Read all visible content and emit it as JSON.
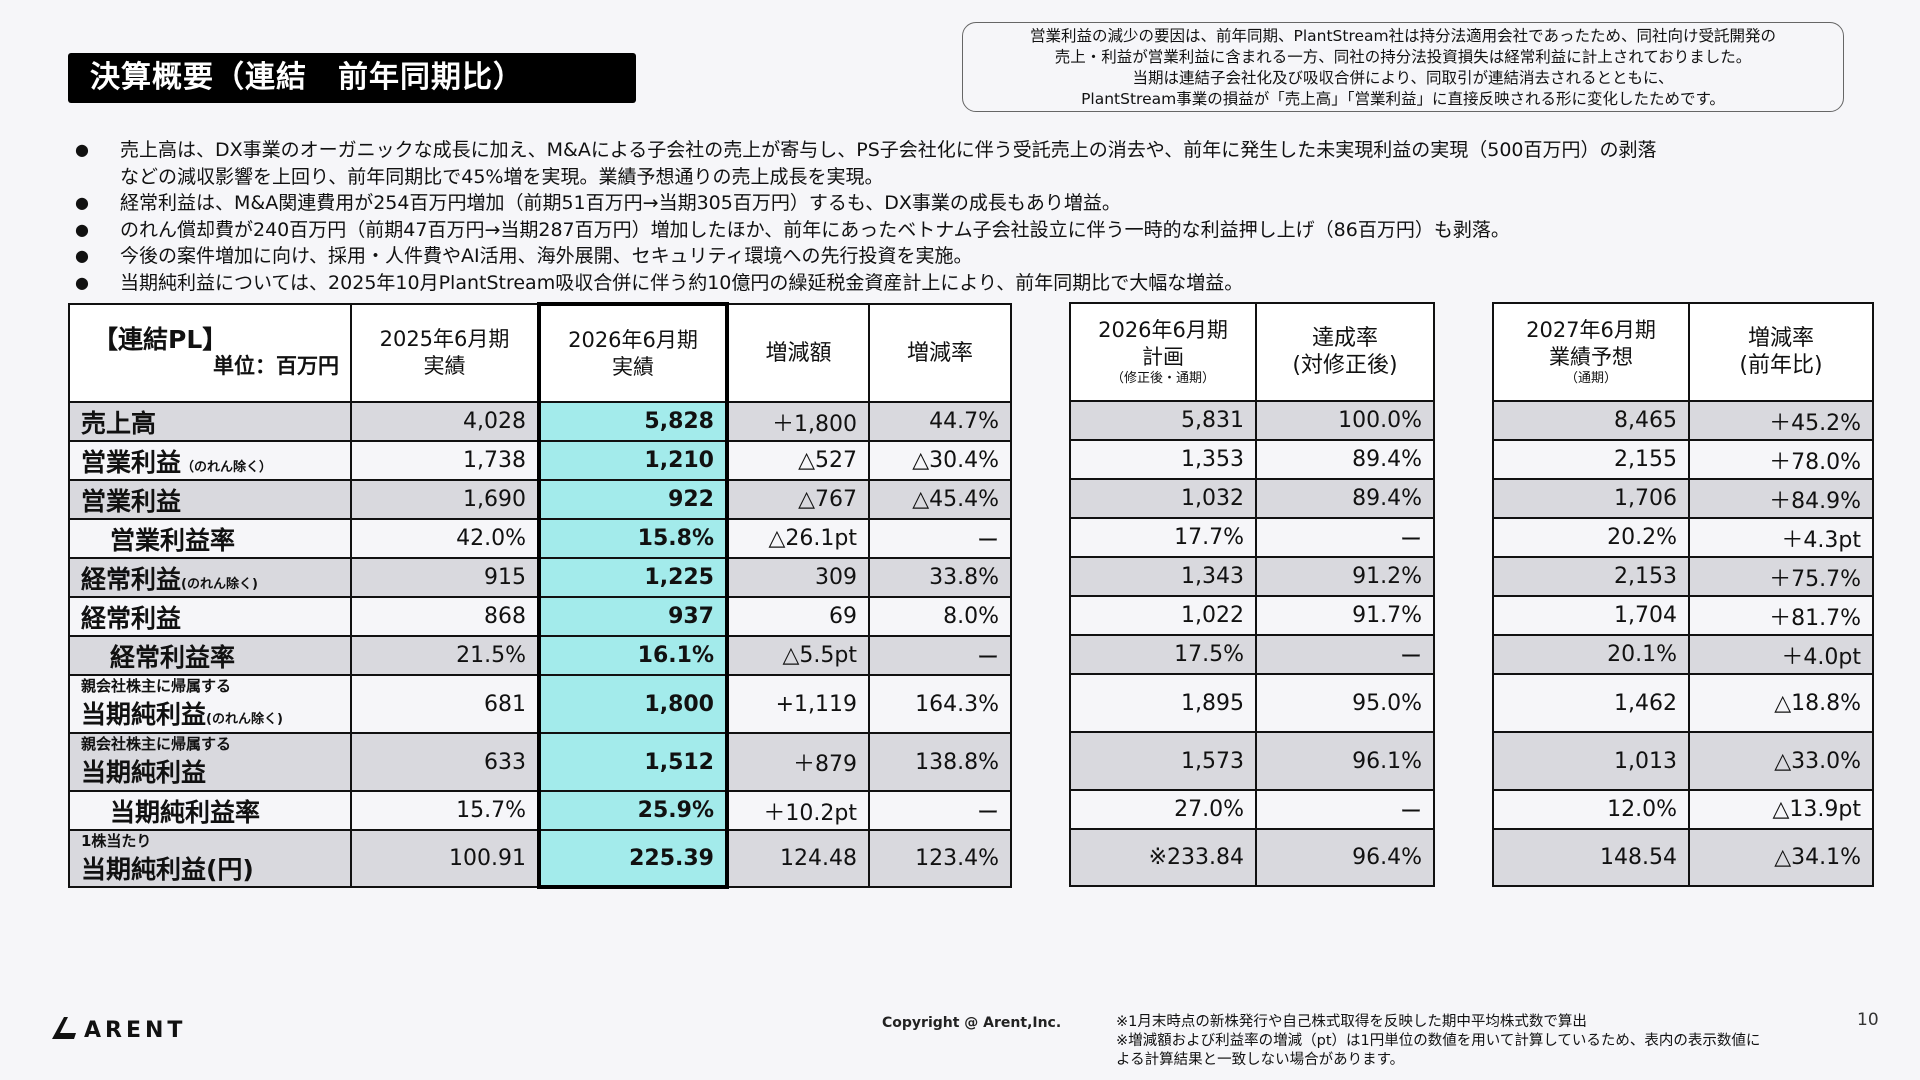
{
  "title": "決算概要（連結　前年同期比）",
  "note_box": [
    "営業利益の減少の要因は、前年同期、PlantStream社は持分法適用会社であったため、同社向け受託開発の",
    "売上・利益が営業利益に含まれる一方、同社の持分法投資損失は経常利益に計上されておりました。",
    "当期は連結子会社化及び吸収合併により、同取引が連結消去されるとともに、",
    "PlantStream事業の損益が「売上高」「営業利益」に直接反映される形に変化したためです。"
  ],
  "bullets": [
    {
      "lines": [
        "売上高は、DX事業のオーガニックな成長に加え、M&Aによる子会社の売上が寄与し、PS子会社化に伴う受託売上の消去や、前年に発生した未実現利益の実現（500百万円）の剥落",
        "などの減収影響を上回り、前年同期比で45%増を実現。業績予想通りの売上成長を実現。"
      ]
    },
    {
      "lines": [
        "経常利益は、M&A関連費用が254百万円増加（前期51百万円→当期305百万円）するも、DX事業の成長もあり増益。"
      ]
    },
    {
      "lines": [
        "のれん償却費が240百万円（前期47百万円→当期287百万円）増加したほか、前年にあったベトナム子会社設立に伴う一時的な利益押し上げ（86百万円）も剥落。"
      ]
    },
    {
      "lines": [
        "今後の案件増加に向け、採用・人件費やAI活用、海外展開、セキュリティ環境への先行投資を実施。"
      ]
    },
    {
      "lines": [
        "当期純利益については、2025年10月PlantStream吸収合併に伴う約10億円の繰延税金資産計上により、前年同期比で大幅な増益。"
      ]
    }
  ],
  "bullet_symbol": "●",
  "table_main": {
    "header_label": "【連結PL】",
    "header_unit": "単位：百万円",
    "columns": [
      {
        "l1": "2025年6月期",
        "l2": "実績"
      },
      {
        "l1": "2026年6月期",
        "l2": "実績"
      },
      {
        "l1": "増減額",
        "l2": ""
      },
      {
        "l1": "増減率",
        "l2": ""
      }
    ]
  },
  "table_plan": {
    "columns": [
      {
        "l1": "2026年6月期",
        "l2": "計画",
        "sub": "（修正後・通期）"
      },
      {
        "l1": "達成率",
        "l2": "(対修正後)",
        "sub": ""
      }
    ]
  },
  "table_fcst": {
    "columns": [
      {
        "l1": "2027年6月期",
        "l2": "業績予想",
        "sub": "（通期）"
      },
      {
        "l1": "増減率",
        "l2": "(前年比)",
        "sub": ""
      }
    ]
  },
  "rows": [
    {
      "pre": "",
      "label": "売上高",
      "suffix": "",
      "indent": false,
      "alt": false,
      "prev": "4,028",
      "curr": "5,828",
      "diff": "＋1,800",
      "rate": "44.7%",
      "plan": "5,831",
      "achv": "100.0%",
      "fcst": "8,465",
      "fchg": "＋45.2%"
    },
    {
      "pre": "",
      "label": "営業利益",
      "suffix": "（のれん除く）",
      "indent": false,
      "alt": true,
      "prev": "1,738",
      "curr": "1,210",
      "diff": "△527",
      "rate": "△30.4%",
      "plan": "1,353",
      "achv": "89.4%",
      "fcst": "2,155",
      "fchg": "＋78.0%"
    },
    {
      "pre": "",
      "label": "営業利益",
      "suffix": "",
      "indent": false,
      "alt": false,
      "prev": "1,690",
      "curr": "922",
      "diff": "△767",
      "rate": "△45.4%",
      "plan": "1,032",
      "achv": "89.4%",
      "fcst": "1,706",
      "fchg": "＋84.9%"
    },
    {
      "pre": "",
      "label": "営業利益率",
      "suffix": "",
      "indent": true,
      "alt": true,
      "prev": "42.0%",
      "curr": "15.8%",
      "diff": "△26.1pt",
      "rate": "ー",
      "plan": "17.7%",
      "achv": "ー",
      "fcst": "20.2%",
      "fchg": "＋4.3pt"
    },
    {
      "pre": "",
      "label": "経常利益",
      "suffix": "(のれん除く)",
      "indent": false,
      "alt": false,
      "prev": "915",
      "curr": "1,225",
      "diff": "309",
      "rate": "33.8%",
      "plan": "1,343",
      "achv": "91.2%",
      "fcst": "2,153",
      "fchg": "＋75.7%"
    },
    {
      "pre": "",
      "label": "経常利益",
      "suffix": "",
      "indent": false,
      "alt": true,
      "prev": "868",
      "curr": "937",
      "diff": "69",
      "rate": "8.0%",
      "plan": "1,022",
      "achv": "91.7%",
      "fcst": "1,704",
      "fchg": "＋81.7%"
    },
    {
      "pre": "",
      "label": "経常利益率",
      "suffix": "",
      "indent": true,
      "alt": false,
      "prev": "21.5%",
      "curr": "16.1%",
      "diff": "△5.5pt",
      "rate": "ー",
      "plan": "17.5%",
      "achv": "ー",
      "fcst": "20.1%",
      "fchg": "＋4.0pt"
    },
    {
      "pre": "親会社株主に帰属する",
      "label": "当期純利益",
      "suffix": "(のれん除く)",
      "indent": false,
      "alt": true,
      "prev": "681",
      "curr": "1,800",
      "diff": "+1,119",
      "rate": "164.3%",
      "plan": "1,895",
      "achv": "95.0%",
      "fcst": "1,462",
      "fchg": "△18.8%"
    },
    {
      "pre": "親会社株主に帰属する",
      "label": "当期純利益",
      "suffix": "",
      "indent": false,
      "alt": false,
      "prev": "633",
      "curr": "1,512",
      "diff": "＋879",
      "rate": "138.8%",
      "plan": "1,573",
      "achv": "96.1%",
      "fcst": "1,013",
      "fchg": "△33.0%"
    },
    {
      "pre": "",
      "label": "当期純利益率",
      "suffix": "",
      "indent": true,
      "alt": true,
      "prev": "15.7%",
      "curr": "25.9%",
      "diff": "＋10.2pt",
      "rate": "ー",
      "plan": "27.0%",
      "achv": "ー",
      "fcst": "12.0%",
      "fchg": "△13.9pt"
    },
    {
      "pre": "1株当たり",
      "label": "当期純利益(円)",
      "suffix": "",
      "indent": false,
      "alt": false,
      "prev": "100.91",
      "curr": "225.39",
      "diff": "124.48",
      "rate": "123.4%",
      "plan": "※233.84",
      "achv": "96.4%",
      "fcst": "148.54",
      "fchg": "△34.1%"
    }
  ],
  "footer": {
    "logo": "ARENT",
    "copyright": "Copyright @ Arent,Inc.",
    "footnotes": [
      "※1月末時点の新株発行や自己株式取得を反映した期中平均株式数で算出",
      "※増減額および利益率の増減（pt）は1円単位の数値を用いて計算しているため、表内の表示数値に",
      "よる計算結果と一致しない場合があります。"
    ],
    "page_number": "10"
  },
  "colors": {
    "highlight": "#a3ebeb",
    "row_gray": "#d9d9de",
    "title_bg": "#000000"
  }
}
